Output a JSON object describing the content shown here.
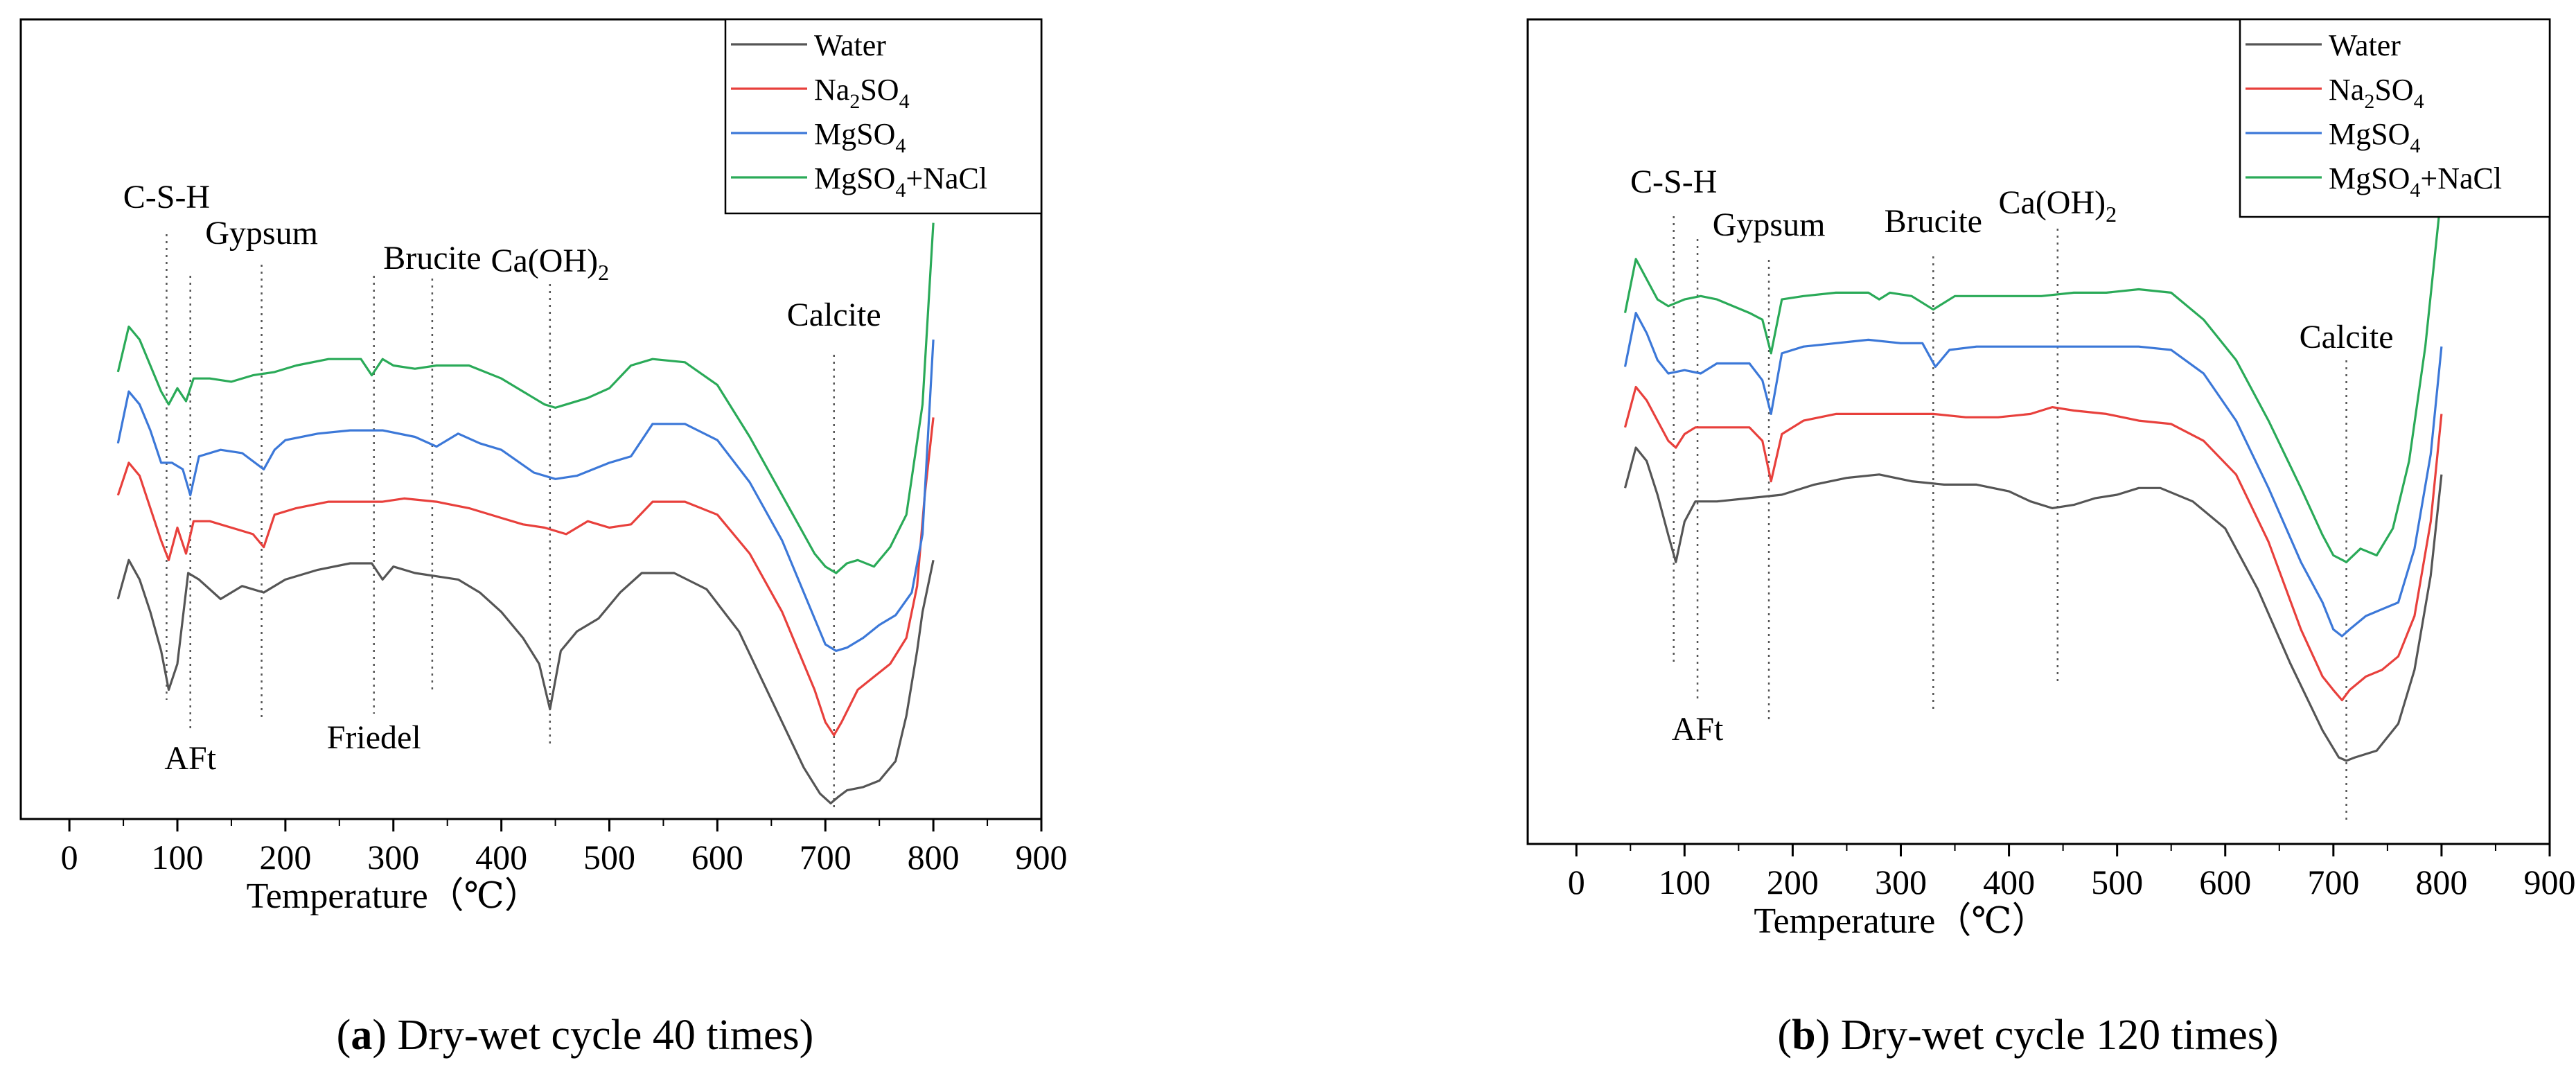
{
  "figure": {
    "panels": [
      {
        "id": "a",
        "letter": "a",
        "caption": " Dry-wet cycle 40 times"
      },
      {
        "id": "b",
        "letter": "b",
        "caption": " Dry-wet cycle 120 times"
      }
    ]
  },
  "chart_data": [
    {
      "type": "line",
      "panel": "a",
      "title": "",
      "caption": "(a) Dry-wet cycle 40 times",
      "xlabel": "Temperature（℃）",
      "ylabel": "",
      "xlim": [
        -45,
        900
      ],
      "ylim": [
        0,
        100
      ],
      "xticks": [
        0,
        100,
        200,
        300,
        400,
        500,
        600,
        700,
        800,
        900
      ],
      "yaxis_ticks": false,
      "grid": false,
      "legend_position": "top-right",
      "series": [
        {
          "name": "Water",
          "label_main": "Water",
          "label_sub": "",
          "label_tail": "",
          "color": "#555555",
          "x": [
            45,
            55,
            65,
            75,
            85,
            92,
            100,
            110,
            120,
            140,
            160,
            180,
            200,
            230,
            260,
            280,
            290,
            300,
            320,
            340,
            360,
            380,
            400,
            420,
            435,
            445,
            455,
            470,
            490,
            510,
            530,
            560,
            590,
            620,
            640,
            660,
            680,
            695,
            705,
            712,
            720,
            735,
            750,
            765,
            775,
            785,
            790,
            795,
            800
          ],
          "y": [
            32,
            38,
            35,
            30,
            24,
            18,
            22,
            36,
            35,
            32,
            34,
            33,
            35,
            36.5,
            37.5,
            37.5,
            35,
            37,
            36,
            35.5,
            35,
            33,
            30,
            26,
            22,
            15,
            24,
            27,
            29,
            33,
            36,
            36,
            33.5,
            27,
            20,
            13,
            6,
            2,
            0.5,
            1.5,
            2.5,
            3,
            4,
            7,
            14,
            24,
            30,
            34,
            38
          ]
        },
        {
          "name": "Na2SO4",
          "label_main": "Na",
          "label_sub": "2",
          "label_tail": "SO4",
          "color": "#e8403c",
          "x": [
            45,
            55,
            65,
            75,
            85,
            92,
            100,
            108,
            115,
            130,
            150,
            170,
            180,
            190,
            210,
            240,
            270,
            290,
            310,
            340,
            370,
            400,
            420,
            440,
            460,
            480,
            500,
            520,
            540,
            570,
            600,
            630,
            660,
            690,
            700,
            708,
            715,
            730,
            745,
            760,
            775,
            785,
            792,
            800
          ],
          "y": [
            48,
            53,
            51,
            46,
            41,
            38,
            43,
            39,
            44,
            44,
            43,
            42,
            40,
            45,
            46,
            47,
            47,
            47,
            47.5,
            47,
            46,
            44.5,
            43.5,
            43,
            42,
            44,
            43,
            43.5,
            47,
            47,
            45,
            39,
            30,
            18,
            13,
            11,
            13,
            18,
            20,
            22,
            26,
            34,
            48,
            60
          ]
        },
        {
          "name": "MgSO4",
          "label_main": "MgSO",
          "label_sub": "4",
          "label_tail": "",
          "color": "#3c78d8",
          "x": [
            45,
            55,
            65,
            75,
            85,
            95,
            105,
            112,
            120,
            140,
            160,
            180,
            190,
            200,
            230,
            260,
            290,
            320,
            340,
            360,
            380,
            400,
            430,
            450,
            470,
            500,
            520,
            540,
            570,
            600,
            630,
            660,
            690,
            700,
            710,
            720,
            735,
            750,
            765,
            780,
            790,
            800
          ],
          "y": [
            56,
            64,
            62,
            58,
            53,
            53,
            52,
            48,
            54,
            55,
            54.5,
            52,
            55,
            56.5,
            57.5,
            58,
            58,
            57,
            55.5,
            57.5,
            56,
            55,
            51.5,
            50.5,
            51,
            53,
            54,
            59,
            59,
            56.5,
            50,
            41,
            29,
            25,
            24,
            24.5,
            26,
            28,
            29.5,
            33,
            42,
            72
          ]
        },
        {
          "name": "MgSO4+NaCl",
          "label_main": "MgSO",
          "label_sub": "4",
          "label_tail": "+NaCl",
          "color": "#2aaa58",
          "x": [
            45,
            55,
            65,
            75,
            85,
            92,
            100,
            108,
            115,
            130,
            150,
            170,
            190,
            210,
            240,
            270,
            280,
            290,
            300,
            320,
            340,
            370,
            400,
            420,
            440,
            450,
            460,
            480,
            500,
            520,
            540,
            570,
            600,
            630,
            660,
            690,
            700,
            710,
            720,
            730,
            745,
            760,
            775,
            790,
            800
          ],
          "y": [
            67,
            74,
            72,
            68,
            64,
            62,
            64.5,
            62.5,
            66,
            66,
            65.5,
            66.5,
            67,
            68,
            69,
            69,
            66.5,
            69,
            68,
            67.5,
            68,
            68,
            66,
            64,
            62,
            61.5,
            62,
            63,
            64.5,
            68,
            69,
            68.5,
            65,
            57,
            48,
            39,
            37,
            36,
            37.5,
            38,
            37,
            40,
            45,
            62,
            90
          ]
        }
      ],
      "annotations": [
        {
          "text": "C-S-H",
          "x": 90
        },
        {
          "text": "AFt",
          "x": 112
        },
        {
          "text": "Gypsum",
          "x": 178
        },
        {
          "text": "Friedel",
          "x": 282
        },
        {
          "text": "Brucite",
          "x": 336
        },
        {
          "text": "Ca(OH)",
          "sub": "2",
          "x": 445
        },
        {
          "text": "Calcite",
          "x": 708
        }
      ]
    },
    {
      "type": "line",
      "panel": "b",
      "title": "",
      "caption": "(b) Dry-wet cycle 120 times",
      "xlabel": "Temperature（℃）",
      "ylabel": "",
      "xlim": [
        -45,
        900
      ],
      "ylim": [
        0,
        100
      ],
      "xticks": [
        0,
        100,
        200,
        300,
        400,
        500,
        600,
        700,
        800,
        900
      ],
      "yaxis_ticks": false,
      "grid": false,
      "legend_position": "top-right",
      "series": [
        {
          "name": "Water",
          "label_main": "Water",
          "label_sub": "",
          "label_tail": "",
          "color": "#555555",
          "x": [
            45,
            55,
            65,
            75,
            85,
            92,
            100,
            110,
            130,
            160,
            190,
            220,
            250,
            280,
            310,
            340,
            370,
            400,
            420,
            440,
            460,
            480,
            500,
            520,
            540,
            570,
            600,
            630,
            660,
            690,
            705,
            712,
            720,
            740,
            760,
            775,
            790,
            800
          ],
          "y": [
            51,
            57,
            55,
            50,
            44,
            40,
            46,
            49,
            49,
            49.5,
            50,
            51.5,
            52.5,
            53,
            52,
            51.5,
            51.5,
            50.5,
            49,
            48,
            48.5,
            49.5,
            50,
            51,
            51,
            49,
            45,
            36,
            25,
            15,
            11,
            10.5,
            11,
            12,
            16,
            24,
            38,
            53
          ]
        },
        {
          "name": "Na2SO4",
          "label_main": "Na",
          "label_sub": "2",
          "label_tail": "SO4",
          "color": "#e8403c",
          "x": [
            45,
            55,
            65,
            75,
            85,
            92,
            100,
            110,
            130,
            160,
            172,
            180,
            190,
            210,
            240,
            270,
            300,
            330,
            360,
            390,
            420,
            440,
            460,
            490,
            520,
            550,
            580,
            610,
            640,
            670,
            690,
            700,
            708,
            715,
            730,
            745,
            760,
            775,
            790,
            800
          ],
          "y": [
            60,
            66,
            64,
            61,
            58,
            57,
            59,
            60,
            60,
            60,
            58,
            52,
            59,
            61,
            62,
            62,
            62,
            62,
            61.5,
            61.5,
            62,
            63,
            62.5,
            62,
            61,
            60.5,
            58,
            53,
            43,
            30,
            23,
            21,
            19.5,
            21,
            23,
            24,
            26,
            32,
            46,
            62
          ]
        },
        {
          "name": "MgSO4",
          "label_main": "MgSO",
          "label_sub": "4",
          "label_tail": "",
          "color": "#3c78d8",
          "x": [
            45,
            55,
            65,
            75,
            85,
            100,
            115,
            130,
            160,
            172,
            180,
            190,
            210,
            240,
            270,
            300,
            320,
            332,
            345,
            370,
            400,
            430,
            460,
            490,
            520,
            550,
            580,
            610,
            640,
            670,
            690,
            700,
            708,
            715,
            730,
            745,
            760,
            775,
            790,
            800
          ],
          "y": [
            69,
            77,
            74,
            70,
            68,
            68.5,
            68,
            69.5,
            69.5,
            67,
            62,
            71,
            72,
            72.5,
            73,
            72.5,
            72.5,
            69,
            71.5,
            72,
            72,
            72,
            72,
            72,
            72,
            71.5,
            68,
            61,
            51,
            40,
            34,
            30,
            29,
            30,
            32,
            33,
            34,
            42,
            56,
            72
          ]
        },
        {
          "name": "MgSO4+NaCl",
          "label_main": "MgSO",
          "label_sub": "4",
          "label_tail": "+NaCl",
          "color": "#2aaa58",
          "x": [
            45,
            55,
            65,
            75,
            85,
            100,
            115,
            130,
            160,
            172,
            180,
            190,
            210,
            240,
            270,
            280,
            290,
            310,
            330,
            350,
            370,
            400,
            430,
            460,
            490,
            520,
            550,
            580,
            610,
            640,
            670,
            690,
            700,
            712,
            725,
            740,
            755,
            770,
            785,
            800
          ],
          "y": [
            77,
            85,
            82,
            79,
            78,
            79,
            79.5,
            79,
            77,
            76,
            71,
            79,
            79.5,
            80,
            80,
            79,
            80,
            79.5,
            77.5,
            79.5,
            79.5,
            79.5,
            79.5,
            80,
            80,
            80.5,
            80,
            76,
            70,
            61,
            51,
            44,
            41,
            40,
            42,
            41,
            45,
            55,
            72,
            95
          ]
        }
      ],
      "annotations": [
        {
          "text": "C-S-H",
          "x": 90
        },
        {
          "text": "AFt",
          "x": 112
        },
        {
          "text": "Gypsum",
          "x": 178
        },
        {
          "text": "Brucite",
          "x": 330
        },
        {
          "text": "Ca(OH)",
          "sub": "2",
          "x": 445
        },
        {
          "text": "Calcite",
          "x": 712
        }
      ]
    }
  ]
}
